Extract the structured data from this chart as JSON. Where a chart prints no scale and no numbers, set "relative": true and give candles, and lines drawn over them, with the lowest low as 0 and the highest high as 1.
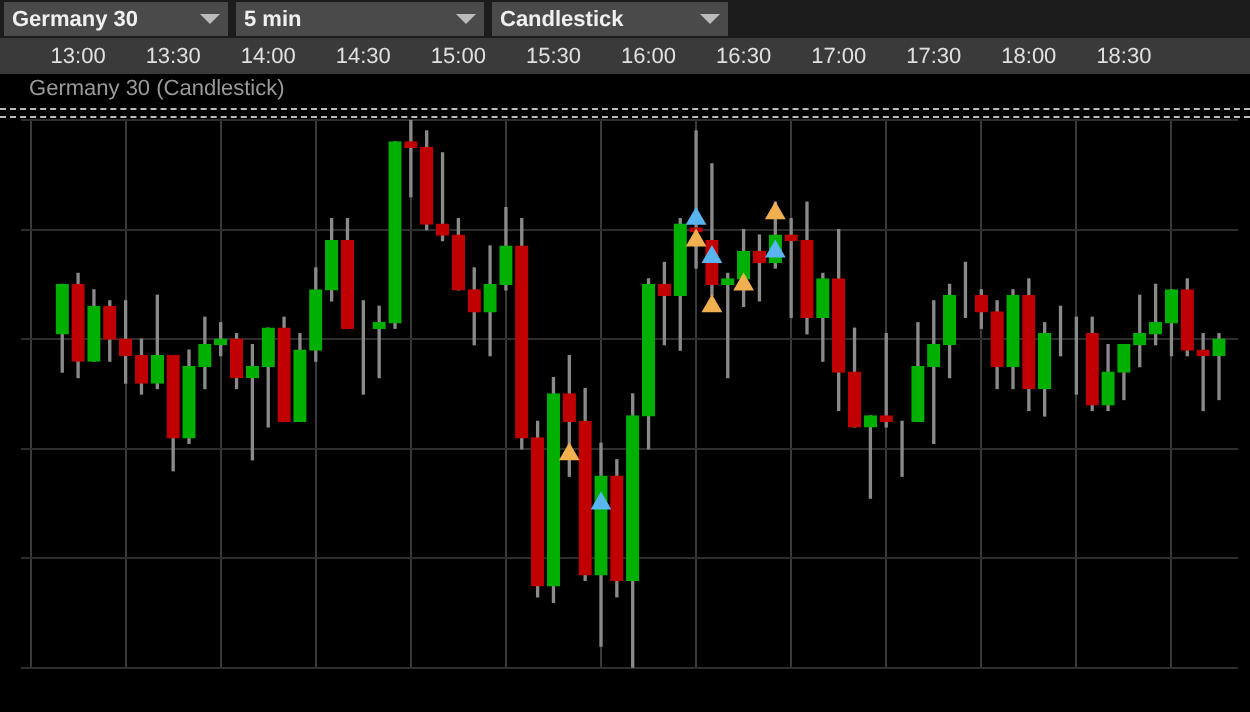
{
  "chart_data": {
    "type": "candlestick",
    "title": "Germany 30 (Candlestick)",
    "annotations": [
      "Germany 30",
      "5 min",
      "Candlestick"
    ],
    "relative": true,
    "grid": true,
    "tick_labels": "x",
    "x": [
      12.9167,
      13,
      13.0833,
      13.1667,
      13.25,
      13.3333,
      13.4167,
      13.5,
      13.5833,
      13.6667,
      13.75,
      13.8333,
      13.9167,
      14,
      14.0833,
      14.1667,
      14.25,
      14.3333,
      14.4167,
      14.5,
      14.5833,
      14.6667,
      14.75,
      14.8333,
      14.9167,
      15,
      15.0833,
      15.1667,
      15.25,
      15.3333,
      15.4167,
      15.5,
      15.5833,
      15.6667,
      15.75,
      15.8333,
      15.9167,
      16,
      16.0833,
      16.1667,
      16.25,
      16.3333,
      16.4167,
      16.5,
      16.5833,
      16.6667,
      16.75,
      16.8333,
      16.9167,
      17,
      17.0833,
      17.1667,
      17.25,
      17.3333,
      17.4167,
      17.5,
      17.5833,
      17.6667,
      17.75,
      17.8333,
      17.9167,
      18,
      18.0833,
      18.1667,
      18.25,
      18.3333,
      18.4167,
      18.5,
      18.5833,
      18.6667,
      18.75,
      18.8333,
      18.9167,
      19
    ],
    "xlim": [
      12.7,
      19.1
    ],
    "xticks": [
      {
        "value": 13,
        "label": "13:00"
      },
      {
        "value": 13.5,
        "label": "13:30"
      },
      {
        "value": 14,
        "label": "14:00"
      },
      {
        "value": 14.5,
        "label": "14:30"
      },
      {
        "value": 15,
        "label": "15:00"
      },
      {
        "value": 15.5,
        "label": "15:30"
      },
      {
        "value": 16,
        "label": "16:00"
      },
      {
        "value": 16.5,
        "label": "16:30"
      },
      {
        "value": 17,
        "label": "17:00"
      },
      {
        "value": 17.5,
        "label": "17:30"
      },
      {
        "value": 18,
        "label": "18:00"
      },
      {
        "value": 18.5,
        "label": "18:30"
      }
    ],
    "series": [
      {
        "type": "candlestick",
        "ohlc": [
          [
            0.61,
            0.7,
            0.54,
            0.7
          ],
          [
            0.7,
            0.72,
            0.53,
            0.56
          ],
          [
            0.56,
            0.69,
            0.56,
            0.66
          ],
          [
            0.66,
            0.67,
            0.56,
            0.6
          ],
          [
            0.6,
            0.67,
            0.52,
            0.57
          ],
          [
            0.57,
            0.6,
            0.5,
            0.52
          ],
          [
            0.52,
            0.68,
            0.51,
            0.57
          ],
          [
            0.57,
            0.57,
            0.36,
            0.42
          ],
          [
            0.42,
            0.58,
            0.41,
            0.55
          ],
          [
            0.55,
            0.64,
            0.51,
            0.59
          ],
          [
            0.59,
            0.63,
            0.57,
            0.6
          ],
          [
            0.6,
            0.61,
            0.51,
            0.53
          ],
          [
            0.53,
            0.59,
            0.38,
            0.55
          ],
          [
            0.55,
            0.62,
            0.44,
            0.62
          ],
          [
            0.62,
            0.64,
            0.45,
            0.45
          ],
          [
            0.45,
            0.61,
            0.45,
            0.58
          ],
          [
            0.58,
            0.73,
            0.56,
            0.69
          ],
          [
            0.69,
            0.82,
            0.67,
            0.78
          ],
          [
            0.78,
            0.82,
            0.62,
            0.62
          ],
          [
            0.62,
            0.67,
            0.5,
            0.62
          ],
          [
            0.62,
            0.66,
            0.53,
            0.63
          ],
          [
            0.63,
            0.96,
            0.62,
            0.96
          ],
          [
            0.96,
            1,
            0.86,
            0.95
          ],
          [
            0.95,
            0.98,
            0.8,
            0.81
          ],
          [
            0.81,
            0.94,
            0.78,
            0.79
          ],
          [
            0.79,
            0.82,
            0.69,
            0.69
          ],
          [
            0.69,
            0.73,
            0.59,
            0.65
          ],
          [
            0.65,
            0.77,
            0.57,
            0.7
          ],
          [
            0.7,
            0.84,
            0.69,
            0.77
          ],
          [
            0.77,
            0.82,
            0.4,
            0.42
          ],
          [
            0.42,
            0.45,
            0.13,
            0.15
          ],
          [
            0.15,
            0.53,
            0.12,
            0.5
          ],
          [
            0.5,
            0.57,
            0.35,
            0.45
          ],
          [
            0.45,
            0.51,
            0.16,
            0.17
          ],
          [
            0.17,
            0.41,
            0.04,
            0.35
          ],
          [
            0.35,
            0.38,
            0.13,
            0.16
          ],
          [
            0.16,
            0.5,
            0,
            0.46
          ],
          [
            0.46,
            0.71,
            0.4,
            0.7
          ],
          [
            0.7,
            0.74,
            0.59,
            0.68
          ],
          [
            0.68,
            0.82,
            0.58,
            0.81
          ],
          [
            0.803,
            0.98,
            0.73,
            0.796
          ],
          [
            0.78,
            0.92,
            0.68,
            0.7
          ],
          [
            0.7,
            0.72,
            0.53,
            0.71
          ],
          [
            0.71,
            0.8,
            0.66,
            0.76
          ],
          [
            0.76,
            0.79,
            0.67,
            0.74
          ],
          [
            0.74,
            0.85,
            0.73,
            0.79
          ],
          [
            0.79,
            0.82,
            0.64,
            0.78
          ],
          [
            0.78,
            0.85,
            0.61,
            0.64
          ],
          [
            0.64,
            0.72,
            0.56,
            0.71
          ],
          [
            0.71,
            0.8,
            0.47,
            0.54
          ],
          [
            0.54,
            0.62,
            0.44,
            0.44
          ],
          [
            0.44,
            0.46,
            0.31,
            0.46
          ],
          [
            0.46,
            0.61,
            0.44,
            0.45
          ],
          [
            0.45,
            0.45,
            0.35,
            0.45
          ],
          [
            0.45,
            0.63,
            0.45,
            0.55
          ],
          [
            0.55,
            0.67,
            0.41,
            0.59
          ],
          [
            0.59,
            0.7,
            0.53,
            0.68
          ],
          [
            0.68,
            0.74,
            0.64,
            0.68
          ],
          [
            0.68,
            0.69,
            0.62,
            0.65
          ],
          [
            0.65,
            0.67,
            0.51,
            0.55
          ],
          [
            0.55,
            0.69,
            0.51,
            0.68
          ],
          [
            0.68,
            0.71,
            0.47,
            0.51
          ],
          [
            0.51,
            0.63,
            0.46,
            0.61
          ],
          [
            0.61,
            0.66,
            0.57,
            0.61
          ],
          [
            0.61,
            0.64,
            0.5,
            0.61
          ],
          [
            0.61,
            0.64,
            0.47,
            0.48
          ],
          [
            0.48,
            0.59,
            0.47,
            0.54
          ],
          [
            0.54,
            0.59,
            0.49,
            0.59
          ],
          [
            0.59,
            0.68,
            0.55,
            0.61
          ],
          [
            0.61,
            0.7,
            0.59,
            0.63
          ],
          [
            0.63,
            0.69,
            0.57,
            0.69
          ],
          [
            0.69,
            0.71,
            0.57,
            0.58
          ],
          [
            0.58,
            0.61,
            0.47,
            0.57
          ],
          [
            0.57,
            0.61,
            0.49,
            0.6
          ]
        ],
        "colors": [
          "#00b000",
          "#c00000",
          "#00b000",
          "#c00000",
          "#c00000",
          "#c00000",
          "#00b000",
          "#c00000",
          "#00b000",
          "#00b000",
          "#00b000",
          "#c00000",
          "#00b000",
          "#00b000",
          "#c00000",
          "#00b000",
          "#00b000",
          "#00b000",
          "#c00000",
          "#aaaaaa",
          "#00b000",
          "#00b000",
          "#c00000",
          "#c00000",
          "#c00000",
          "#c00000",
          "#c00000",
          "#00b000",
          "#00b000",
          "#c00000",
          "#c00000",
          "#00b000",
          "#c00000",
          "#c00000",
          "#00b000",
          "#c00000",
          "#00b000",
          "#00b000",
          "#c00000",
          "#00b000",
          "#c00000",
          "#c00000",
          "#00b000",
          "#00b000",
          "#c00000",
          "#00b000",
          "#c00000",
          "#c00000",
          "#00b000",
          "#c00000",
          "#c00000",
          "#00b000",
          "#c00000",
          "#aaaaaa",
          "#00b000",
          "#00b000",
          "#00b000",
          "#aaaaaa",
          "#c00000",
          "#c00000",
          "#00b000",
          "#c00000",
          "#00b000",
          "#aaaaaa",
          "#aaaaaa",
          "#c00000",
          "#00b000",
          "#00b000",
          "#00b000",
          "#00b000",
          "#00b000",
          "#c00000",
          "#c00000",
          "#00b000"
        ]
      },
      {
        "type": "scatter",
        "x": [
          15.75,
          16.25,
          16.3333,
          16.6667
        ],
        "values": [
          0.3,
          0.82,
          0.75,
          0.76
        ],
        "color": "#5ab4f0",
        "marker": "triangle"
      },
      {
        "type": "scatter",
        "x": [
          15.5833,
          16.25,
          16.3333,
          16.5,
          16.6667
        ],
        "values": [
          0.39,
          0.78,
          0.66,
          0.7,
          0.83
        ],
        "color": "#f0b050",
        "marker": "triangle"
      }
    ]
  }
}
